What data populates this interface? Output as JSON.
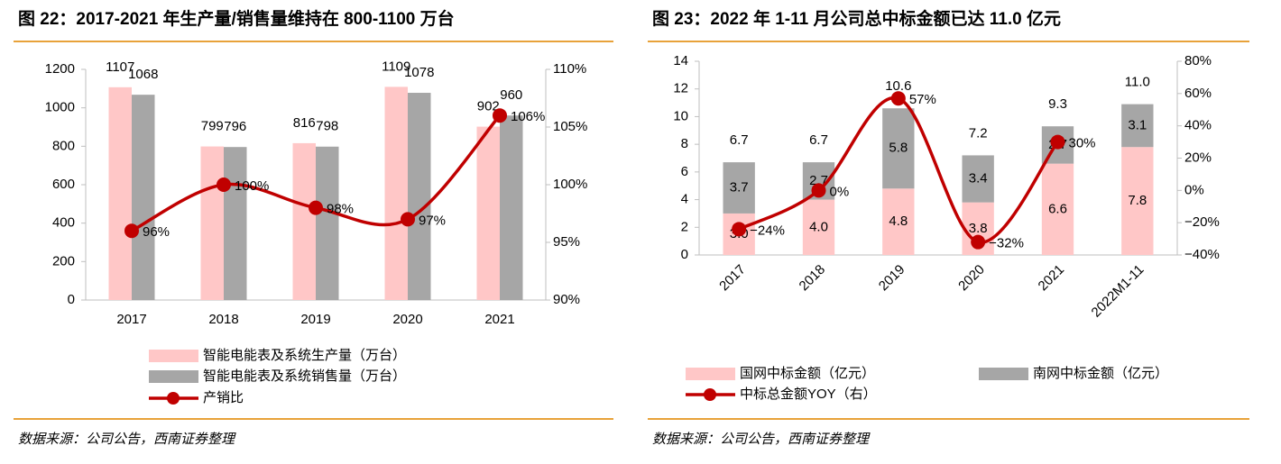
{
  "chart_data": [
    {
      "type": "bar",
      "title": "图 22：2017-2021 年生产量/销售量维持在 800-1100 万台",
      "categories": [
        "2017",
        "2018",
        "2019",
        "2020",
        "2021"
      ],
      "series": [
        {
          "name": "智能电能表及系统生产量（万台）",
          "type": "bar",
          "color": "#ffc7c7",
          "values": [
            1107,
            799,
            816,
            1109,
            902
          ]
        },
        {
          "name": "智能电能表及系统销售量（万台）",
          "type": "bar",
          "color": "#a6a6a6",
          "values": [
            1068,
            796,
            798,
            1078,
            960
          ]
        },
        {
          "name": "产销比",
          "type": "line",
          "axis": "y2",
          "color": "#c00000",
          "values": [
            96,
            100,
            98,
            97,
            106
          ],
          "value_labels": [
            "96%",
            "100%",
            "98%",
            "97%",
            "106%"
          ]
        }
      ],
      "ylim": [
        0,
        1200
      ],
      "yticks": [
        0,
        200,
        400,
        600,
        800,
        1000,
        1200
      ],
      "y2lim": [
        90,
        110
      ],
      "y2ticks": [
        {
          "value": 90,
          "label": "90%"
        },
        {
          "value": 95,
          "label": "95%"
        },
        {
          "value": 100,
          "label": "100%"
        },
        {
          "value": 105,
          "label": "105%"
        },
        {
          "value": 110,
          "label": "110%"
        }
      ],
      "legend": "bottom",
      "source": "数据来源：公司公告，西南证券整理"
    },
    {
      "type": "bar",
      "stacked": true,
      "title": "图 23：2022 年 1-11 月公司总中标金额已达 11.0 亿元",
      "categories": [
        "2017",
        "2018",
        "2019",
        "2020",
        "2021",
        "2022M1-11"
      ],
      "series": [
        {
          "name": "国网中标金额（亿元）",
          "type": "bar",
          "color": "#ffc7c7",
          "values": [
            3.0,
            4.0,
            4.8,
            3.8,
            6.6,
            7.8
          ],
          "value_labels": [
            "3.0",
            "4.0",
            "4.8",
            "3.8",
            "6.6",
            "7.8"
          ]
        },
        {
          "name": "南网中标金额（亿元）",
          "type": "bar",
          "color": "#a6a6a6",
          "values": [
            3.7,
            2.7,
            5.8,
            3.4,
            2.7,
            3.1
          ],
          "value_labels": [
            "3.7",
            "2.7",
            "5.8",
            "3.4",
            "2.7",
            "3.1"
          ]
        },
        {
          "name": "中标总金额YOY（右）",
          "type": "line",
          "axis": "y2",
          "color": "#c00000",
          "values": [
            -24,
            0,
            57,
            -32,
            30,
            null
          ],
          "value_labels": [
            "−24%",
            "0%",
            "57%",
            "−32%",
            "30%",
            null
          ]
        }
      ],
      "total_labels": [
        "6.7",
        "6.7",
        "10.6",
        "7.2",
        "9.3",
        "11.0"
      ],
      "ylim": [
        0,
        14
      ],
      "yticks": [
        0,
        2,
        4,
        6,
        8,
        10,
        12,
        14
      ],
      "y2lim": [
        -40,
        80
      ],
      "y2ticks": [
        {
          "value": -40,
          "label": "−40%"
        },
        {
          "value": -20,
          "label": "−20%"
        },
        {
          "value": 0,
          "label": "0%"
        },
        {
          "value": 20,
          "label": "20%"
        },
        {
          "value": 40,
          "label": "40%"
        },
        {
          "value": 60,
          "label": "60%"
        },
        {
          "value": 80,
          "label": "80%"
        }
      ],
      "legend": "bottom",
      "source": "数据来源：公司公告，西南证券整理"
    }
  ]
}
